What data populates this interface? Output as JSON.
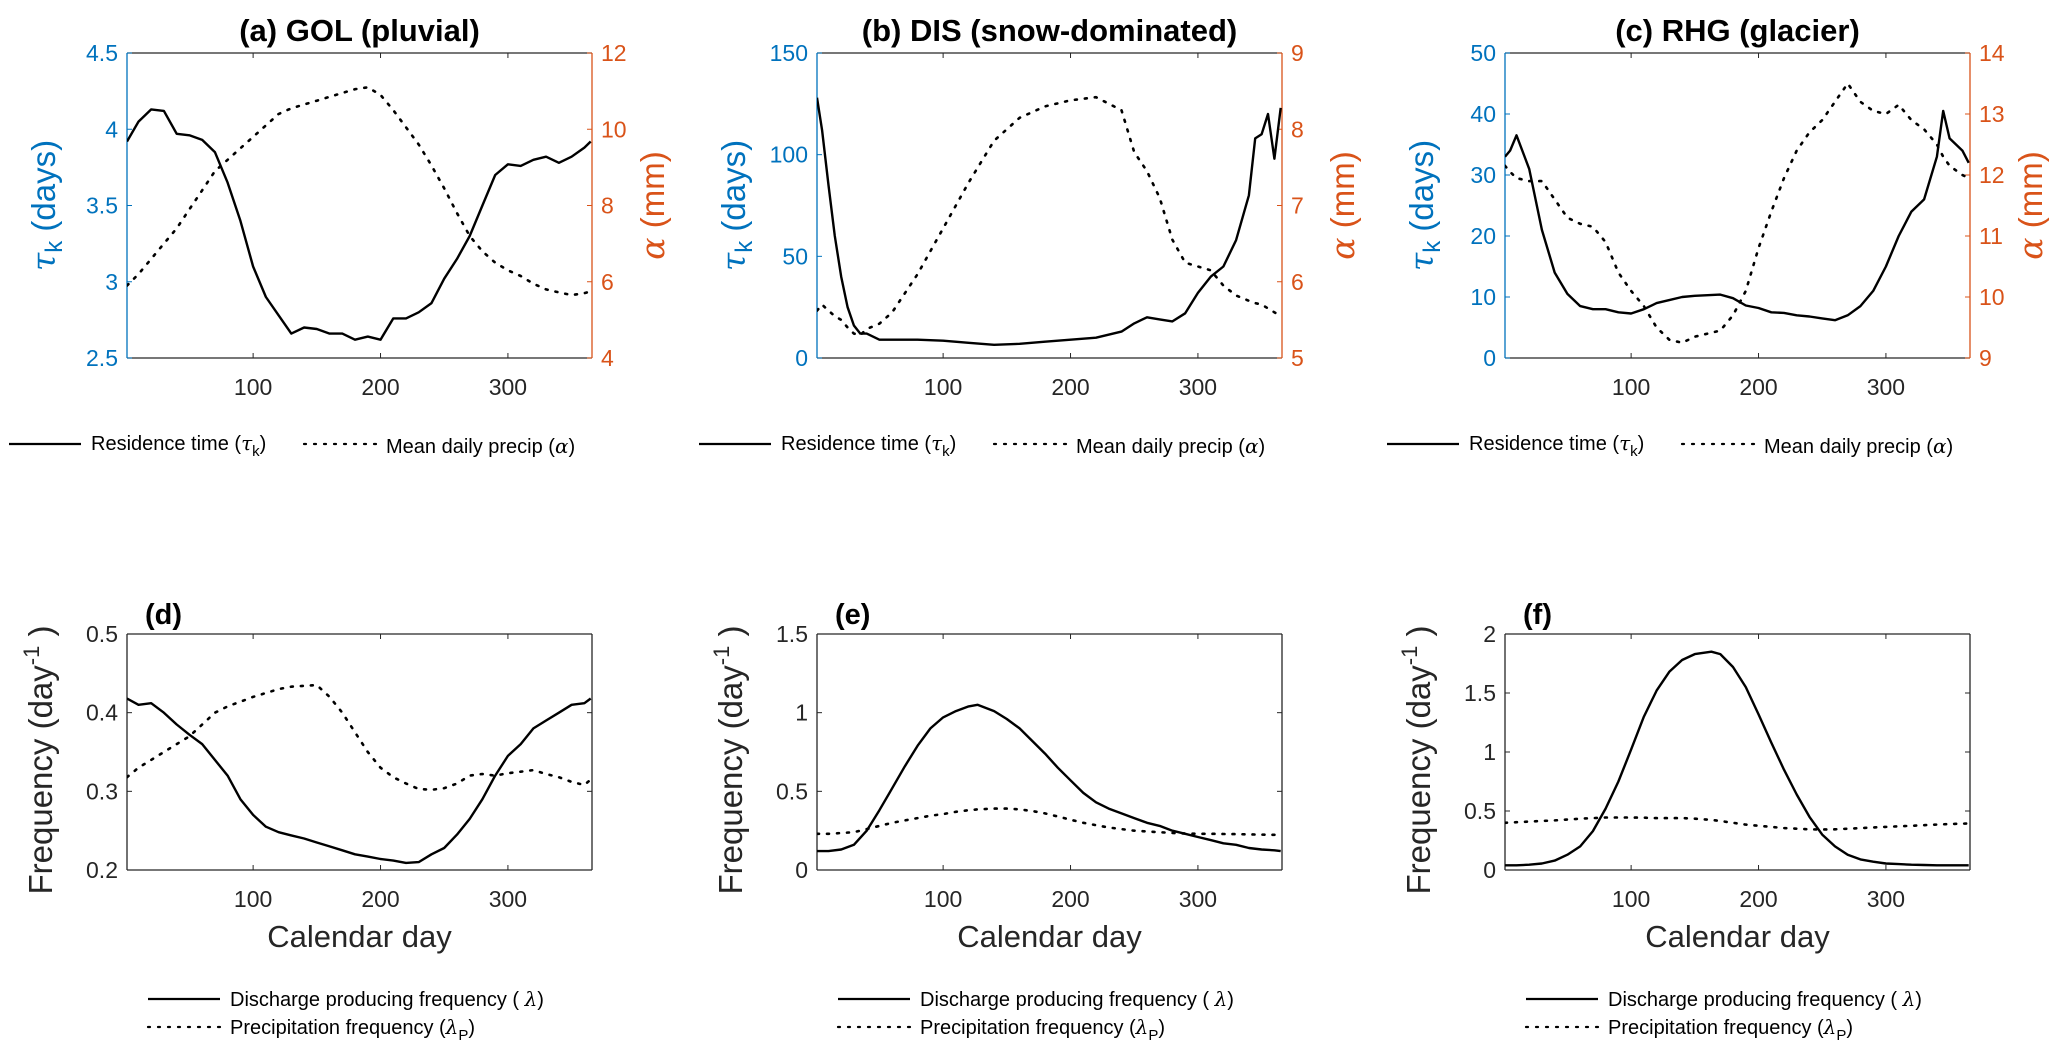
{
  "colors": {
    "left_axis": "#0072BD",
    "right_axis": "#D95319",
    "axis": "#262626",
    "series": "#000000"
  },
  "chart_data": [
    {
      "id": "a",
      "type": "line",
      "title": "(a) GOL (pluvial)",
      "xlabel": "",
      "xlim": [
        1,
        366
      ],
      "xticks": [
        100,
        200,
        300
      ],
      "ylabel_left": {
        "sym": "τ",
        "sub": "k",
        "text": " (days)"
      },
      "ylabel_right": {
        "sym": "α",
        "text": " (mm)"
      },
      "ylim_left": [
        2.5,
        4.5
      ],
      "yticks_left": [
        "2.5",
        "3",
        "3.5",
        "4",
        "4.5"
      ],
      "ytick_vals_left": [
        2.5,
        3,
        3.5,
        4,
        4.5
      ],
      "ylim_right": [
        4,
        12
      ],
      "yticks_right": [
        "4",
        "6",
        "8",
        "10",
        "12"
      ],
      "ytick_vals_right": [
        4,
        6,
        8,
        10,
        12
      ],
      "x": [
        1,
        10,
        20,
        30,
        40,
        50,
        60,
        70,
        80,
        90,
        100,
        110,
        120,
        130,
        140,
        150,
        160,
        170,
        180,
        190,
        200,
        210,
        220,
        230,
        240,
        250,
        260,
        270,
        280,
        290,
        300,
        310,
        320,
        330,
        340,
        350,
        360,
        365
      ],
      "series": [
        {
          "name": "Residence time (τk)",
          "axis": "left",
          "style": "solid",
          "values": [
            3.92,
            4.05,
            4.13,
            4.12,
            3.97,
            3.96,
            3.93,
            3.85,
            3.65,
            3.4,
            3.1,
            2.9,
            2.78,
            2.66,
            2.7,
            2.69,
            2.66,
            2.66,
            2.62,
            2.64,
            2.62,
            2.76,
            2.76,
            2.8,
            2.86,
            3.02,
            3.15,
            3.3,
            3.5,
            3.7,
            3.77,
            3.76,
            3.8,
            3.82,
            3.78,
            3.82,
            3.88,
            3.92
          ]
        },
        {
          "name": "Mean daily precip (α)",
          "axis": "right",
          "style": "dotted",
          "values": [
            5.9,
            6.2,
            6.6,
            7.0,
            7.4,
            7.9,
            8.4,
            8.9,
            9.2,
            9.5,
            9.8,
            10.1,
            10.4,
            10.55,
            10.65,
            10.75,
            10.85,
            10.95,
            11.05,
            11.1,
            10.9,
            10.5,
            10.05,
            9.6,
            9.05,
            8.45,
            7.8,
            7.2,
            6.8,
            6.5,
            6.3,
            6.15,
            5.95,
            5.8,
            5.72,
            5.65,
            5.7,
            5.75
          ]
        }
      ],
      "legend": [
        {
          "label": "Residence time (",
          "sym": "τ",
          "sub": "k",
          "tail": ")",
          "style": "solid"
        },
        {
          "label": "Mean daily precip (",
          "sym": "α",
          "sub": "",
          "tail": ")",
          "style": "dotted"
        }
      ]
    },
    {
      "id": "b",
      "type": "line",
      "title": "(b) DIS (snow-dominated)",
      "xlabel": "",
      "xlim": [
        1,
        366
      ],
      "xticks": [
        100,
        200,
        300
      ],
      "ylabel_left": {
        "sym": "τ",
        "sub": "k",
        "text": " (days)"
      },
      "ylabel_right": {
        "sym": "α",
        "text": " (mm)"
      },
      "ylim_left": [
        0,
        150
      ],
      "yticks_left": [
        "0",
        "50",
        "100",
        "150"
      ],
      "ytick_vals_left": [
        0,
        50,
        100,
        150
      ],
      "ylim_right": [
        5,
        9
      ],
      "yticks_right": [
        "5",
        "6",
        "7",
        "8",
        "9"
      ],
      "ytick_vals_right": [
        5,
        6,
        7,
        8,
        9
      ],
      "x": [
        1,
        5,
        10,
        15,
        20,
        25,
        30,
        35,
        40,
        50,
        60,
        80,
        100,
        120,
        140,
        160,
        180,
        200,
        220,
        240,
        250,
        260,
        270,
        280,
        290,
        300,
        310,
        320,
        330,
        340,
        345,
        350,
        355,
        360,
        365
      ],
      "series": [
        {
          "name": "Residence time (τk)",
          "axis": "left",
          "style": "solid",
          "values": [
            128,
            112,
            85,
            60,
            40,
            25,
            16,
            12,
            12,
            9,
            9,
            9,
            8.5,
            7.5,
            6.5,
            7,
            8,
            9,
            10,
            13,
            17,
            20,
            19,
            18,
            22,
            32,
            40,
            45,
            58,
            80,
            108,
            110,
            120,
            98,
            123
          ]
        },
        {
          "name": "Mean daily precip (α)",
          "axis": "right",
          "style": "dotted",
          "values": [
            5.62,
            5.7,
            5.62,
            5.55,
            5.5,
            5.4,
            5.32,
            5.3,
            5.38,
            5.45,
            5.6,
            6.1,
            6.7,
            7.3,
            7.85,
            8.15,
            8.3,
            8.38,
            8.42,
            8.25,
            7.7,
            7.45,
            7.1,
            6.55,
            6.25,
            6.2,
            6.15,
            5.95,
            5.82,
            5.75,
            5.72,
            5.7,
            5.65,
            5.6,
            5.55
          ]
        }
      ],
      "legend": [
        {
          "label": "Residence time (",
          "sym": "τ",
          "sub": "k",
          "tail": ")",
          "style": "solid"
        },
        {
          "label": "Mean daily precip (",
          "sym": "α",
          "sub": "",
          "tail": ")",
          "style": "dotted"
        }
      ]
    },
    {
      "id": "c",
      "type": "line",
      "title": "(c) RHG (glacier)",
      "xlabel": "",
      "xlim": [
        1,
        366
      ],
      "xticks": [
        100,
        200,
        300
      ],
      "ylabel_left": {
        "sym": "τ",
        "sub": "k",
        "text": " (days)"
      },
      "ylabel_right": {
        "sym": "α",
        "text": " (mm)"
      },
      "ylim_left": [
        0,
        50
      ],
      "yticks_left": [
        "0",
        "10",
        "20",
        "30",
        "40",
        "50"
      ],
      "ytick_vals_left": [
        0,
        10,
        20,
        30,
        40,
        50
      ],
      "ylim_right": [
        9,
        14
      ],
      "yticks_right": [
        "9",
        "10",
        "11",
        "12",
        "13",
        "14"
      ],
      "ytick_vals_right": [
        9,
        10,
        11,
        12,
        13,
        14
      ],
      "x": [
        1,
        5,
        10,
        20,
        30,
        40,
        50,
        60,
        70,
        80,
        90,
        100,
        110,
        120,
        130,
        140,
        150,
        160,
        170,
        180,
        190,
        200,
        210,
        220,
        230,
        240,
        250,
        260,
        270,
        280,
        290,
        300,
        310,
        320,
        330,
        340,
        345,
        350,
        360,
        365
      ],
      "series": [
        {
          "name": "Residence time (τk)",
          "axis": "left",
          "style": "solid",
          "values": [
            33,
            34,
            36.5,
            31,
            21,
            14,
            10.5,
            8.5,
            8,
            8,
            7.5,
            7.3,
            8,
            9,
            9.5,
            10,
            10.2,
            10.3,
            10.4,
            9.8,
            8.6,
            8.2,
            7.5,
            7.4,
            7,
            6.8,
            6.5,
            6.2,
            7,
            8.5,
            11,
            15,
            20,
            24,
            26,
            33,
            40.5,
            36,
            34,
            32
          ]
        },
        {
          "name": "Mean daily precip (α)",
          "axis": "right",
          "style": "dotted",
          "values": [
            12.15,
            12.05,
            11.95,
            11.9,
            11.9,
            11.6,
            11.3,
            11.2,
            11.15,
            10.9,
            10.4,
            10.1,
            9.85,
            9.5,
            9.3,
            9.25,
            9.35,
            9.4,
            9.45,
            9.7,
            10.1,
            10.8,
            11.4,
            11.95,
            12.4,
            12.7,
            12.9,
            13.2,
            13.5,
            13.2,
            13.05,
            13.0,
            13.15,
            12.9,
            12.75,
            12.5,
            12.3,
            12.15,
            12.0,
            11.95
          ]
        }
      ],
      "legend": [
        {
          "label": "Residence time (",
          "sym": "τ",
          "sub": "k",
          "tail": ")",
          "style": "solid"
        },
        {
          "label": "Mean daily precip (",
          "sym": "α",
          "sub": "",
          "tail": ")",
          "style": "dotted"
        }
      ]
    },
    {
      "id": "d",
      "type": "line",
      "title": "(d)",
      "xlabel": "Calendar day",
      "xlim": [
        1,
        366
      ],
      "xticks": [
        100,
        200,
        300
      ],
      "ylabel_left": {
        "text": "Frequency (day",
        "sup": "-1",
        "tail": ")"
      },
      "ylim_left": [
        0.2,
        0.5
      ],
      "yticks_left": [
        "0.2",
        "0.3",
        "0.4",
        "0.5"
      ],
      "ytick_vals_left": [
        0.2,
        0.3,
        0.4,
        0.5
      ],
      "x": [
        1,
        10,
        20,
        30,
        40,
        50,
        60,
        70,
        80,
        90,
        100,
        110,
        120,
        130,
        140,
        150,
        160,
        170,
        180,
        190,
        200,
        210,
        220,
        230,
        240,
        250,
        260,
        270,
        280,
        290,
        300,
        310,
        320,
        330,
        340,
        350,
        360,
        365
      ],
      "series": [
        {
          "name": "Discharge producing frequency (λ)",
          "axis": "left",
          "style": "solid",
          "values": [
            0.418,
            0.41,
            0.412,
            0.4,
            0.385,
            0.372,
            0.36,
            0.34,
            0.32,
            0.29,
            0.27,
            0.255,
            0.248,
            0.244,
            0.24,
            0.235,
            0.23,
            0.225,
            0.22,
            0.217,
            0.214,
            0.212,
            0.209,
            0.21,
            0.22,
            0.228,
            0.245,
            0.265,
            0.29,
            0.32,
            0.345,
            0.36,
            0.38,
            0.39,
            0.4,
            0.41,
            0.412,
            0.418
          ]
        },
        {
          "name": "Precipitation frequency (λP)",
          "axis": "left",
          "style": "dotted",
          "values": [
            0.318,
            0.33,
            0.34,
            0.35,
            0.36,
            0.37,
            0.385,
            0.4,
            0.408,
            0.414,
            0.42,
            0.425,
            0.43,
            0.433,
            0.434,
            0.435,
            0.42,
            0.4,
            0.375,
            0.35,
            0.33,
            0.318,
            0.31,
            0.303,
            0.302,
            0.304,
            0.31,
            0.32,
            0.322,
            0.32,
            0.323,
            0.325,
            0.327,
            0.322,
            0.318,
            0.312,
            0.308,
            0.315
          ]
        }
      ],
      "legend": [
        {
          "label": "Discharge producing frequency ( ",
          "sym": "λ",
          "sub": "",
          "tail": ")",
          "style": "solid"
        },
        {
          "label": "Precipitation frequency (",
          "sym": "λ",
          "sub": "P",
          "tail": ")",
          "style": "dotted"
        }
      ]
    },
    {
      "id": "e",
      "type": "line",
      "title": "(e)",
      "xlabel": "Calendar day",
      "xlim": [
        1,
        366
      ],
      "xticks": [
        100,
        200,
        300
      ],
      "ylabel_left": {
        "text": "Frequency (day",
        "sup": "-1",
        "tail": ")"
      },
      "ylim_left": [
        0,
        1.5
      ],
      "yticks_left": [
        "0",
        "0.5",
        "1",
        "1.5"
      ],
      "ytick_vals_left": [
        0,
        0.5,
        1,
        1.5
      ],
      "x": [
        1,
        10,
        20,
        30,
        40,
        50,
        60,
        70,
        80,
        90,
        100,
        110,
        120,
        127,
        140,
        150,
        160,
        170,
        180,
        190,
        200,
        210,
        220,
        230,
        240,
        250,
        260,
        270,
        280,
        290,
        300,
        310,
        320,
        330,
        340,
        350,
        360,
        365
      ],
      "series": [
        {
          "name": "Discharge producing frequency (λ)",
          "axis": "left",
          "style": "solid",
          "values": [
            0.12,
            0.12,
            0.13,
            0.16,
            0.25,
            0.38,
            0.52,
            0.66,
            0.79,
            0.9,
            0.97,
            1.01,
            1.04,
            1.05,
            1.01,
            0.96,
            0.9,
            0.82,
            0.74,
            0.65,
            0.57,
            0.49,
            0.43,
            0.39,
            0.36,
            0.33,
            0.3,
            0.28,
            0.25,
            0.23,
            0.21,
            0.19,
            0.17,
            0.16,
            0.14,
            0.13,
            0.125,
            0.12
          ]
        },
        {
          "name": "Precipitation frequency (λP)",
          "axis": "left",
          "style": "dotted",
          "values": [
            0.23,
            0.23,
            0.235,
            0.24,
            0.26,
            0.28,
            0.3,
            0.315,
            0.33,
            0.345,
            0.355,
            0.37,
            0.38,
            0.385,
            0.39,
            0.39,
            0.385,
            0.375,
            0.36,
            0.34,
            0.32,
            0.3,
            0.285,
            0.27,
            0.26,
            0.25,
            0.245,
            0.24,
            0.235,
            0.232,
            0.23,
            0.23,
            0.229,
            0.228,
            0.226,
            0.225,
            0.224,
            0.225
          ]
        }
      ],
      "legend": [
        {
          "label": "Discharge producing frequency ( ",
          "sym": "λ",
          "sub": "",
          "tail": ")",
          "style": "solid"
        },
        {
          "label": "Precipitation frequency (",
          "sym": "λ",
          "sub": "P",
          "tail": ")",
          "style": "dotted"
        }
      ]
    },
    {
      "id": "f",
      "type": "line",
      "title": "(f)",
      "xlabel": "Calendar day",
      "xlim": [
        1,
        366
      ],
      "xticks": [
        100,
        200,
        300
      ],
      "ylabel_left": {
        "text": "Frequency (day",
        "sup": "-1",
        "tail": ")"
      },
      "ylim_left": [
        0,
        2
      ],
      "yticks_left": [
        "0",
        "0.5",
        "1",
        "1.5",
        "2"
      ],
      "ytick_vals_left": [
        0,
        0.5,
        1,
        1.5,
        2
      ],
      "x": [
        1,
        10,
        20,
        30,
        40,
        50,
        60,
        70,
        80,
        90,
        100,
        110,
        120,
        130,
        140,
        150,
        163,
        170,
        180,
        190,
        200,
        210,
        220,
        230,
        240,
        250,
        260,
        270,
        280,
        290,
        300,
        310,
        320,
        330,
        340,
        350,
        360,
        365
      ],
      "series": [
        {
          "name": "Discharge producing frequency (λ)",
          "axis": "left",
          "style": "solid",
          "values": [
            0.04,
            0.04,
            0.045,
            0.055,
            0.08,
            0.13,
            0.2,
            0.33,
            0.52,
            0.75,
            1.02,
            1.3,
            1.52,
            1.68,
            1.78,
            1.83,
            1.85,
            1.83,
            1.72,
            1.55,
            1.32,
            1.08,
            0.85,
            0.64,
            0.45,
            0.3,
            0.2,
            0.13,
            0.09,
            0.07,
            0.055,
            0.05,
            0.045,
            0.042,
            0.04,
            0.04,
            0.04,
            0.04
          ]
        },
        {
          "name": "Precipitation frequency (λP)",
          "axis": "left",
          "style": "dotted",
          "values": [
            0.4,
            0.405,
            0.41,
            0.415,
            0.42,
            0.428,
            0.435,
            0.44,
            0.445,
            0.445,
            0.445,
            0.443,
            0.44,
            0.44,
            0.44,
            0.435,
            0.425,
            0.415,
            0.4,
            0.385,
            0.375,
            0.365,
            0.355,
            0.35,
            0.345,
            0.343,
            0.345,
            0.35,
            0.355,
            0.36,
            0.365,
            0.37,
            0.375,
            0.38,
            0.385,
            0.39,
            0.392,
            0.395
          ]
        }
      ],
      "legend": [
        {
          "label": "Discharge producing frequency ( ",
          "sym": "λ",
          "sub": "",
          "tail": ")",
          "style": "solid"
        },
        {
          "label": "Precipitation frequency (",
          "sym": "λ",
          "sub": "P",
          "tail": ")",
          "style": "dotted"
        }
      ]
    }
  ]
}
